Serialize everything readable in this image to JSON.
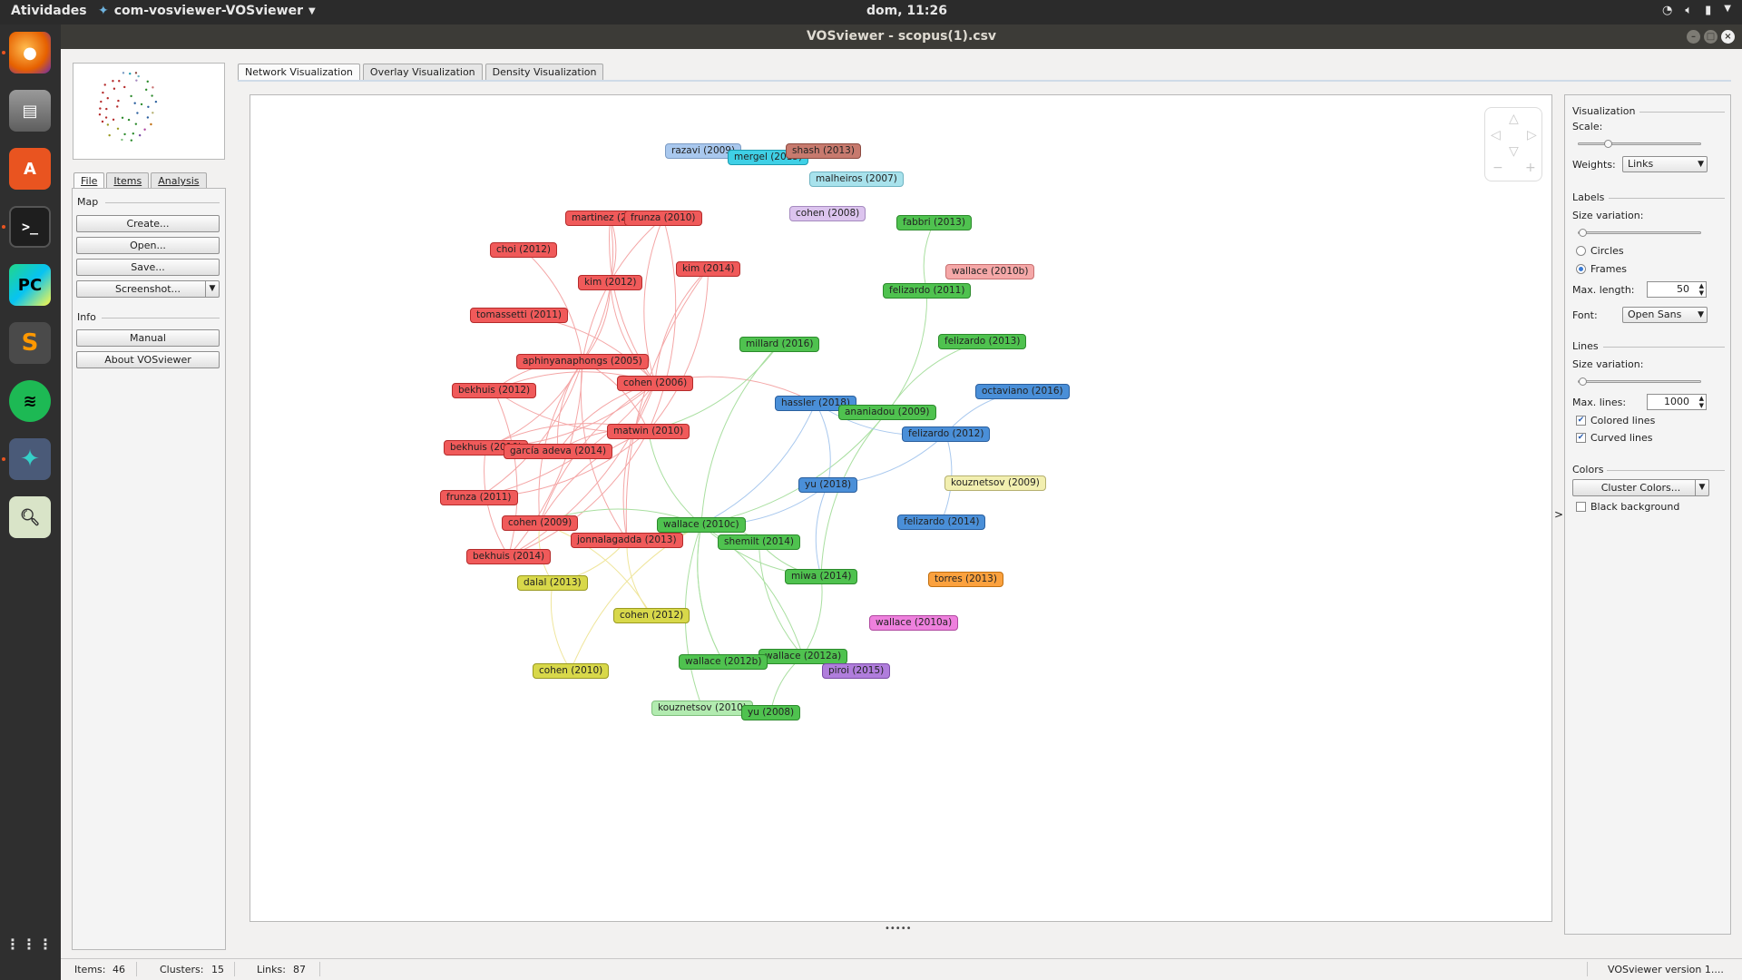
{
  "topbar": {
    "activities": "Atividades",
    "app_menu": "com-vosviewer-VOSviewer",
    "clock": "dom, 11:26"
  },
  "window": {
    "title": "VOSviewer - scopus(1).csv"
  },
  "dock": {
    "apps": [
      {
        "name": "firefox-icon",
        "glyph": "🦊",
        "color": "#e66000"
      },
      {
        "name": "files-icon",
        "glyph": "▤",
        "color": "#8a8a8a"
      },
      {
        "name": "software-center-icon",
        "glyph": "A",
        "color": "#e95420"
      },
      {
        "name": "terminal-icon",
        "glyph": ">_",
        "color": "#2c2c2c"
      },
      {
        "name": "pycharm-icon",
        "glyph": "PC",
        "color": "#21d789"
      },
      {
        "name": "sublime-icon",
        "glyph": "S",
        "color": "#ff9800"
      },
      {
        "name": "spotify-icon",
        "glyph": "◉",
        "color": "#1db954"
      },
      {
        "name": "vosviewer-icon",
        "glyph": "✦",
        "color": "#3a4a6a"
      },
      {
        "name": "image-viewer-icon",
        "glyph": "🔍",
        "color": "#6a8a6a"
      }
    ],
    "show_apps": "⋮⋮⋮"
  },
  "left": {
    "tabs": [
      "File",
      "Items",
      "Analysis"
    ],
    "map_label": "Map",
    "buttons": {
      "create": "Create...",
      "open": "Open...",
      "save": "Save...",
      "screenshot": "Screenshot..."
    },
    "info_label": "Info",
    "info_buttons": {
      "manual": "Manual",
      "about": "About VOSviewer"
    }
  },
  "main_tabs": [
    "Network Visualization",
    "Overlay Visualization",
    "Density Visualization"
  ],
  "right": {
    "visualization_label": "Visualization",
    "scale_label": "Scale:",
    "scale_value": 0.22,
    "weights_label": "Weights:",
    "weights_value": "Links",
    "labels_label": "Labels",
    "label_size_variation_label": "Size variation:",
    "label_size_variation_value": 0.0,
    "circles_label": "Circles",
    "frames_label": "Frames",
    "max_length_label": "Max. length:",
    "max_length_value": "50",
    "font_label": "Font:",
    "font_value": "Open Sans",
    "lines_label": "Lines",
    "line_size_variation_label": "Size variation:",
    "line_size_variation_value": 0.0,
    "max_lines_label": "Max. lines:",
    "max_lines_value": "1000",
    "colored_lines_label": "Colored lines",
    "curved_lines_label": "Curved lines",
    "colors_label": "Colors",
    "cluster_colors_label": "Cluster Colors...",
    "black_background_label": "Black background"
  },
  "status": {
    "items_label": "Items:",
    "items_value": "46",
    "clusters_label": "Clusters:",
    "clusters_value": "15",
    "links_label": "Links:",
    "links_value": "87",
    "version": "VOSviewer version 1...."
  },
  "network": {
    "cluster_colors": {
      "red": {
        "bg": "#f05a5a",
        "border": "#b52b2b",
        "line": "#f4a6a6"
      },
      "green": {
        "bg": "#4fc24f",
        "border": "#2b8a2b",
        "line": "#a9dfa0"
      },
      "blue": {
        "bg": "#4a8fd8",
        "border": "#2a5f9e",
        "line": "#a8c8ee"
      },
      "yellow": {
        "bg": "#d8d84a",
        "border": "#9a9a20",
        "line": "#efe59a"
      },
      "lightblue": {
        "bg": "#a9c8ee",
        "border": "#7b9bc4"
      },
      "cyan": {
        "bg": "#3fd0e6",
        "border": "#1b9bb0"
      },
      "brown": {
        "bg": "#c77a6e",
        "border": "#8c4a40"
      },
      "teal": {
        "bg": "#a8e2ec",
        "border": "#6fb4c2"
      },
      "lilac": {
        "bg": "#dcc4ee",
        "border": "#a58abf"
      },
      "pink": {
        "bg": "#f5a8a8",
        "border": "#c87070"
      },
      "lightgreen": {
        "bg": "#b2ebb0",
        "border": "#7fbf7c"
      },
      "paleyellow": {
        "bg": "#f2efb0",
        "border": "#b5b070"
      },
      "orange": {
        "bg": "#fba13e",
        "border": "#c06f10"
      },
      "magenta": {
        "bg": "#ee80dd",
        "border": "#b048a0"
      },
      "purple": {
        "bg": "#b07ddc",
        "border": "#7a4aa6"
      }
    },
    "nodes": [
      {
        "id": "razavi2009",
        "label": "razavi (2009)",
        "cluster": "lightblue"
      },
      {
        "id": "mergel2015",
        "label": "mergel (2015)",
        "cluster": "cyan"
      },
      {
        "id": "shash2013",
        "label": "shash (2013)",
        "cluster": "brown"
      },
      {
        "id": "malheiros2007",
        "label": "malheiros (2007)",
        "cluster": "teal"
      },
      {
        "id": "cohen2008",
        "label": "cohen (2008)",
        "cluster": "lilac"
      },
      {
        "id": "martinez2008",
        "label": "martinez (2008)",
        "cluster": "red"
      },
      {
        "id": "frunza2010",
        "label": "frunza (2010)",
        "cluster": "red"
      },
      {
        "id": "fabbri2013",
        "label": "fabbri (2013)",
        "cluster": "green"
      },
      {
        "id": "choi2012",
        "label": "choi (2012)",
        "cluster": "red"
      },
      {
        "id": "kim2014",
        "label": "kim (2014)",
        "cluster": "red"
      },
      {
        "id": "wallace2010b",
        "label": "wallace (2010b)",
        "cluster": "pink"
      },
      {
        "id": "kim2012",
        "label": "kim (2012)",
        "cluster": "red"
      },
      {
        "id": "felizardo2011",
        "label": "felizardo (2011)",
        "cluster": "green"
      },
      {
        "id": "tomassetti2011",
        "label": "tomassetti (2011)",
        "cluster": "red"
      },
      {
        "id": "millard2016",
        "label": "millard (2016)",
        "cluster": "green"
      },
      {
        "id": "felizardo2013",
        "label": "felizardo (2013)",
        "cluster": "green"
      },
      {
        "id": "aphinyanaphongs2005",
        "label": "aphinyanaphongs (2005)",
        "cluster": "red"
      },
      {
        "id": "cohen2006",
        "label": "cohen (2006)",
        "cluster": "red"
      },
      {
        "id": "bekhuis2012",
        "label": "bekhuis (2012)",
        "cluster": "red"
      },
      {
        "id": "octaviano2016",
        "label": "octaviano (2016)",
        "cluster": "blue"
      },
      {
        "id": "hassler2018",
        "label": "hassler (2018)",
        "cluster": "blue"
      },
      {
        "id": "ananiadou2009",
        "label": "ananiadou (2009)",
        "cluster": "green"
      },
      {
        "id": "matwin2010",
        "label": "matwin (2010)",
        "cluster": "red"
      },
      {
        "id": "felizardo2012",
        "label": "felizardo (2012)",
        "cluster": "blue"
      },
      {
        "id": "bekhuis2010",
        "label": "bekhuis (2010)",
        "cluster": "red"
      },
      {
        "id": "garciaadeva2014",
        "label": "garcía adeva (2014)",
        "cluster": "red"
      },
      {
        "id": "kouznetsov2009",
        "label": "kouznetsov (2009)",
        "cluster": "paleyellow"
      },
      {
        "id": "yu2018",
        "label": "yu (2018)",
        "cluster": "blue"
      },
      {
        "id": "frunza2011",
        "label": "frunza (2011)",
        "cluster": "red"
      },
      {
        "id": "cohen2009",
        "label": "cohen (2009)",
        "cluster": "red"
      },
      {
        "id": "wallace2010c",
        "label": "wallace (2010c)",
        "cluster": "green"
      },
      {
        "id": "felizardo2014",
        "label": "felizardo (2014)",
        "cluster": "blue"
      },
      {
        "id": "jonnalagadda2013",
        "label": "jonnalagadda (2013)",
        "cluster": "red"
      },
      {
        "id": "shemilt2014",
        "label": "shemilt (2014)",
        "cluster": "green"
      },
      {
        "id": "bekhuis2014",
        "label": "bekhuis (2014)",
        "cluster": "red"
      },
      {
        "id": "miwa2014",
        "label": "miwa (2014)",
        "cluster": "green"
      },
      {
        "id": "dalal2013",
        "label": "dalal (2013)",
        "cluster": "yellow"
      },
      {
        "id": "torres2013",
        "label": "torres (2013)",
        "cluster": "orange"
      },
      {
        "id": "cohen2012",
        "label": "cohen (2012)",
        "cluster": "yellow"
      },
      {
        "id": "wallace2010a",
        "label": "wallace (2010a)",
        "cluster": "magenta"
      },
      {
        "id": "wallace2012a",
        "label": "wallace (2012a)",
        "cluster": "green"
      },
      {
        "id": "wallace2012b",
        "label": "wallace (2012b)",
        "cluster": "green"
      },
      {
        "id": "piroi2015",
        "label": "piroi (2015)",
        "cluster": "purple"
      },
      {
        "id": "cohen2010",
        "label": "cohen (2010)",
        "cluster": "yellow"
      },
      {
        "id": "kouznetsov2010",
        "label": "kouznetsov (2010)",
        "cluster": "lightgreen"
      },
      {
        "id": "yu2008",
        "label": "yu (2008)",
        "cluster": "green"
      }
    ]
  }
}
